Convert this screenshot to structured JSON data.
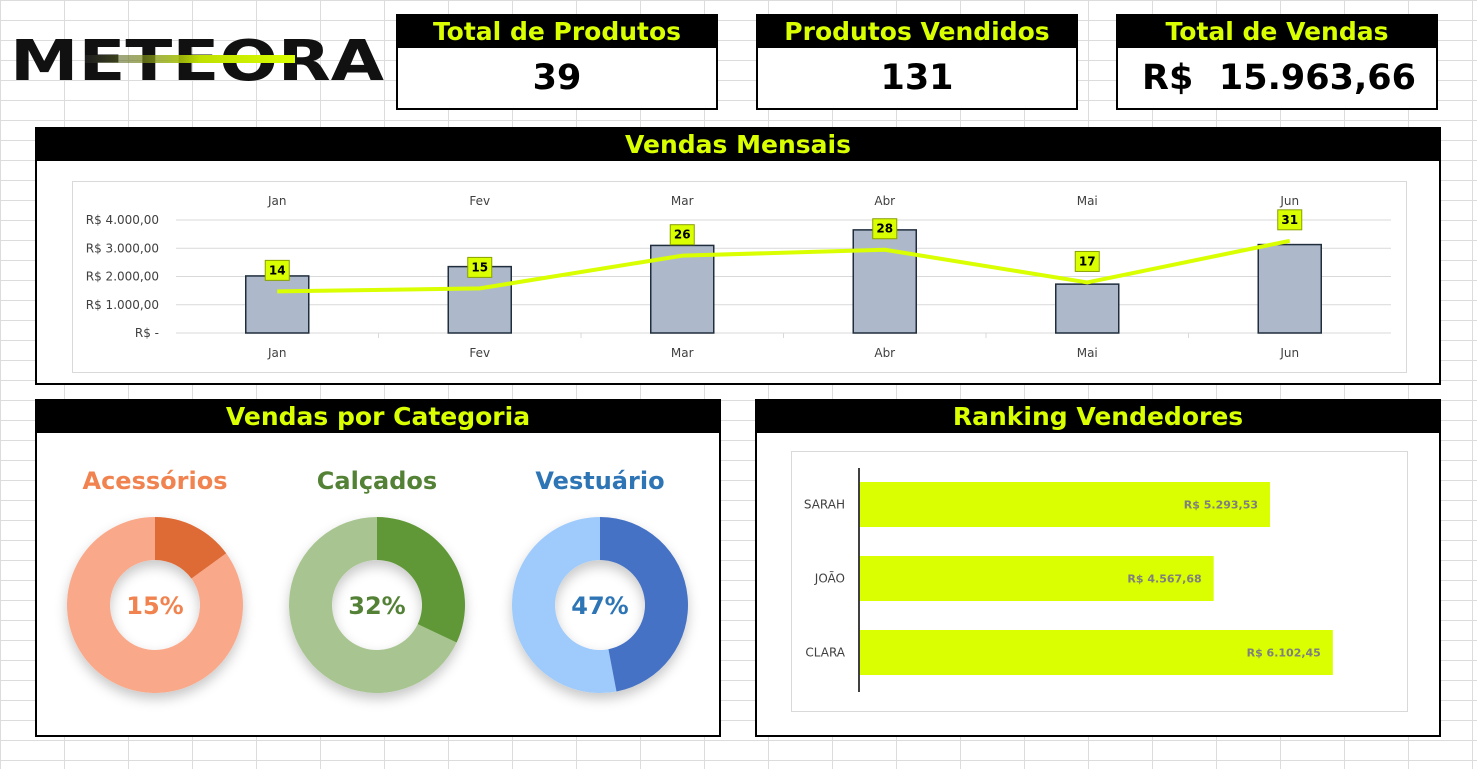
{
  "brand": {
    "logo_text": "METEORA"
  },
  "kpis": {
    "total_produtos": {
      "label": "Total de Produtos",
      "value": "39"
    },
    "produtos_vendidos": {
      "label": "Produtos Vendidos",
      "value": "131"
    },
    "total_vendas": {
      "label": "Total de Vendas",
      "currency": "R$",
      "value": "15.963,66"
    }
  },
  "panels": {
    "monthly": {
      "title": "Vendas Mensais"
    },
    "category": {
      "title": "Vendas por Categoria"
    },
    "ranking": {
      "title": "Ranking Vendedores"
    }
  },
  "colors": {
    "accent": "#d9ff00",
    "bar_fill": "#adb9ca"
  },
  "chart_data": [
    {
      "type": "bar",
      "categories": [
        "Jan",
        "Fev",
        "Mar",
        "Abr",
        "Mai",
        "Jun"
      ],
      "y_tick_labels": [
        "R$ -",
        "R$ 1.000,00",
        "R$ 2.000,00",
        "R$ 3.000,00",
        "R$ 4.000,00"
      ],
      "ylim": [
        0,
        4000
      ],
      "series": [
        {
          "type": "bar",
          "values": [
            2020,
            2350,
            3100,
            3650,
            1730,
            3130
          ]
        },
        {
          "type": "line",
          "values": [
            14,
            15,
            26,
            28,
            17,
            31
          ],
          "ylim": [
            0,
            38
          ]
        }
      ],
      "grid": true,
      "title": "",
      "xlabel": "",
      "ylabel": ""
    },
    {
      "type": "pie",
      "donuts": [
        {
          "label": "Acessórios",
          "percent_label": "15%",
          "share": 0.15,
          "color_main": "#f9a98a",
          "color_slice": "#de6b35",
          "label_color": "#f0834f"
        },
        {
          "label": "Calçados",
          "percent_label": "32%",
          "share": 0.32,
          "color_main": "#a8c591",
          "color_slice": "#609838",
          "label_color": "#538135"
        },
        {
          "label": "Vestuário",
          "percent_label": "47%",
          "share": 0.47,
          "color_main": "#9ecbfb",
          "color_slice": "#4472c4",
          "label_color": "#2e75b6"
        }
      ]
    },
    {
      "type": "bar",
      "orientation": "horizontal",
      "categories": [
        "SARAH",
        "JOÃO",
        "CLARA"
      ],
      "values": [
        5293.53,
        4567.68,
        6102.45
      ],
      "value_labels": [
        "R$ 5.293,53",
        "R$ 4.567,68",
        "R$ 6.102,45"
      ],
      "xlim": [
        0,
        6800
      ]
    }
  ]
}
